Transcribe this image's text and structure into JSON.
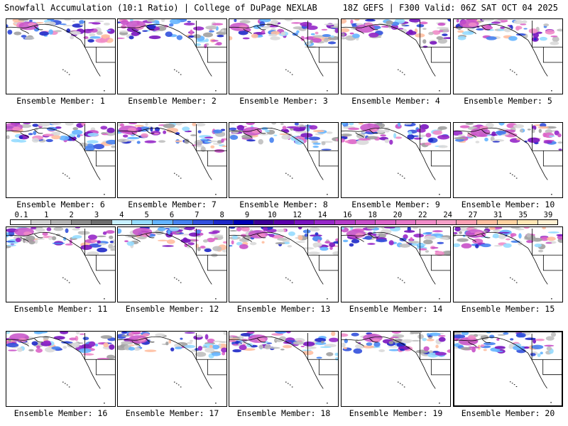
{
  "header": {
    "title": "Snowfall Accumulation (10:1 Ratio) | College of DuPage NEXLAB",
    "run_info": "18Z GEFS | F300 Valid: 06Z SAT OCT 04 2025"
  },
  "panels": [
    {
      "label": "Ensemble Member: 1"
    },
    {
      "label": "Ensemble Member: 2"
    },
    {
      "label": "Ensemble Member: 3"
    },
    {
      "label": "Ensemble Member: 4"
    },
    {
      "label": "Ensemble Member: 5"
    },
    {
      "label": "Ensemble Member: 6"
    },
    {
      "label": "Ensemble Member: 7"
    },
    {
      "label": "Ensemble Member: 8"
    },
    {
      "label": "Ensemble Member: 9"
    },
    {
      "label": "Ensemble Member: 10"
    },
    {
      "label": "Ensemble Member: 11"
    },
    {
      "label": "Ensemble Member: 12"
    },
    {
      "label": "Ensemble Member: 13"
    },
    {
      "label": "Ensemble Member: 14"
    },
    {
      "label": "Ensemble Member: 15"
    },
    {
      "label": "Ensemble Member: 16"
    },
    {
      "label": "Ensemble Member: 17"
    },
    {
      "label": "Ensemble Member: 18"
    },
    {
      "label": "Ensemble Member: 19"
    },
    {
      "label": "Ensemble Member: 20"
    }
  ],
  "selected_panel": "Ensemble Member: 20",
  "colorbar": {
    "labels": [
      "0.1",
      "1",
      "2",
      "3",
      "4",
      "5",
      "6",
      "7",
      "8",
      "9",
      "10",
      "12",
      "14",
      "16",
      "18",
      "20",
      "22",
      "24",
      "27",
      "31",
      "35",
      "39"
    ],
    "colors": [
      "#ffffff",
      "#d2d2d2",
      "#b4b4b4",
      "#8c8c8c",
      "#6e6e6e",
      "#c8f0ff",
      "#96dcff",
      "#64b4ff",
      "#4682f0",
      "#3250dc",
      "#1e28c8",
      "#0000b4",
      "#3c0096",
      "#5a00aa",
      "#7814be",
      "#9628c8",
      "#b43cc8",
      "#c850c8",
      "#dc64c8",
      "#e678c8",
      "#f08cc8",
      "#f5a0c8",
      "#faa0b4",
      "#ffbea0",
      "#ffd2a0",
      "#ffe6b4",
      "#fff0d2"
    ]
  }
}
